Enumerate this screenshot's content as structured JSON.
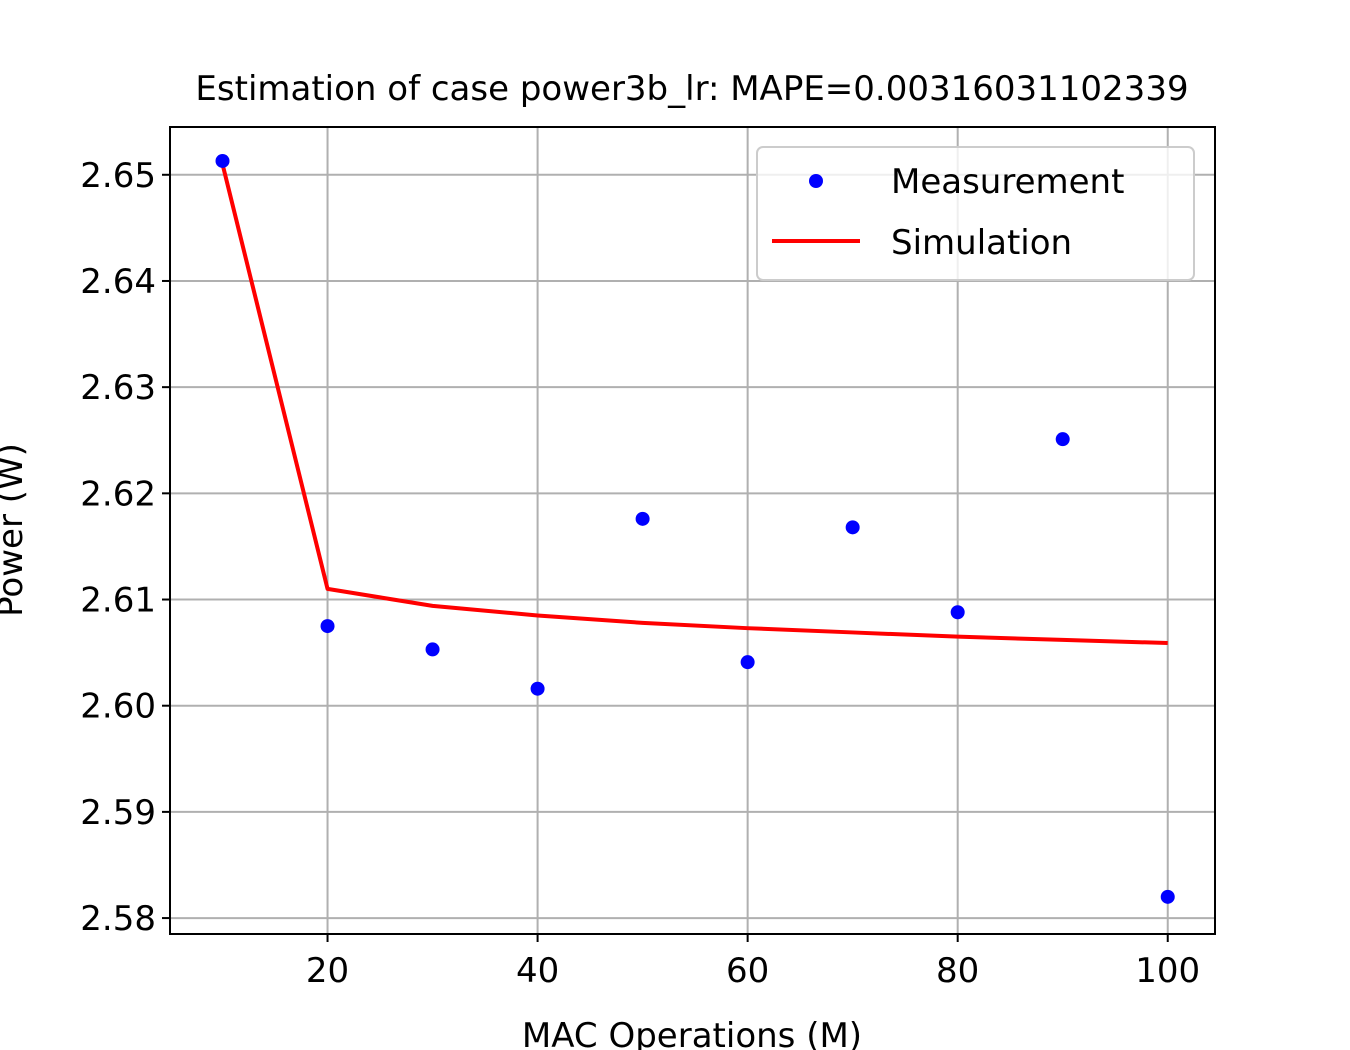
{
  "chart_data": {
    "type": "scatter",
    "title": "Estimation of case power3b_lr: MAPE=0.00316031102339",
    "xlabel": "MAC Operations (M)",
    "ylabel": "Power (W)",
    "xlim": [
      5,
      104.5
    ],
    "ylim": [
      2.5785,
      2.6545
    ],
    "xticks": [
      20,
      40,
      60,
      80,
      100
    ],
    "yticks": [
      2.58,
      2.59,
      2.6,
      2.61,
      2.62,
      2.63,
      2.64,
      2.65
    ],
    "xtick_labels": [
      "20",
      "40",
      "60",
      "80",
      "100"
    ],
    "ytick_labels": [
      "2.58",
      "2.59",
      "2.60",
      "2.61",
      "2.62",
      "2.63",
      "2.64",
      "2.65"
    ],
    "grid": true,
    "legend_position": "upper right",
    "series": [
      {
        "name": "Measurement",
        "style": "points",
        "color": "#0000ff",
        "x": [
          10,
          20,
          30,
          40,
          50,
          60,
          70,
          80,
          90,
          100
        ],
        "y": [
          2.6513,
          2.6075,
          2.6053,
          2.6016,
          2.6176,
          2.6041,
          2.6168,
          2.6088,
          2.6251,
          2.582
        ]
      },
      {
        "name": "Simulation",
        "style": "line",
        "color": "#ff0000",
        "x": [
          10,
          20,
          30,
          40,
          50,
          60,
          70,
          80,
          90,
          100
        ],
        "y": [
          2.651,
          2.611,
          2.6094,
          2.6085,
          2.6078,
          2.6073,
          2.6069,
          2.6065,
          2.6062,
          2.6059
        ]
      }
    ]
  }
}
